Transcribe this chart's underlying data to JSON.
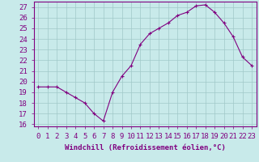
{
  "x": [
    0,
    1,
    2,
    3,
    4,
    5,
    6,
    7,
    8,
    9,
    10,
    11,
    12,
    13,
    14,
    15,
    16,
    17,
    18,
    19,
    20,
    21,
    22,
    23
  ],
  "y": [
    19.5,
    19.5,
    19.5,
    19.0,
    18.5,
    18.0,
    17.0,
    16.3,
    19.0,
    20.5,
    21.5,
    23.5,
    24.5,
    25.0,
    25.5,
    26.2,
    26.5,
    27.1,
    27.2,
    26.5,
    25.5,
    24.2,
    22.3,
    21.5
  ],
  "line_color": "#800080",
  "marker": "+",
  "bg_color": "#c8eaea",
  "grid_color": "#a0c8c8",
  "ylabel_ticks": [
    16,
    17,
    18,
    19,
    20,
    21,
    22,
    23,
    24,
    25,
    26,
    27
  ],
  "xlabel": "Windchill (Refroidissement éolien,°C)",
  "xlim": [
    -0.5,
    23.5
  ],
  "ylim": [
    15.8,
    27.5
  ],
  "xticks": [
    0,
    1,
    2,
    3,
    4,
    5,
    6,
    7,
    8,
    9,
    10,
    11,
    12,
    13,
    14,
    15,
    16,
    17,
    18,
    19,
    20,
    21,
    22,
    23
  ],
  "xlabel_fontsize": 6.5,
  "tick_fontsize": 6.5,
  "line_width": 0.8,
  "marker_size": 3,
  "axis_color": "#800080"
}
